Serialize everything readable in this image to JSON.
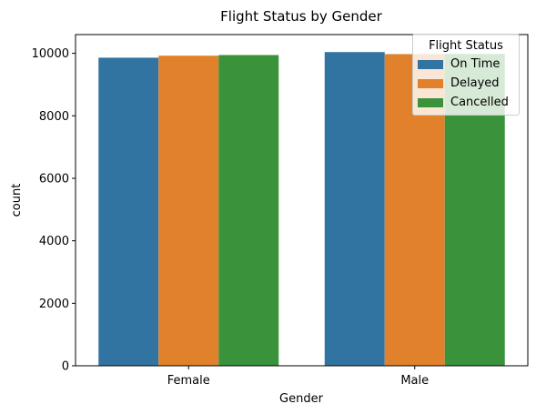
{
  "chart_data": {
    "type": "bar",
    "title": "Flight Status by Gender",
    "xlabel": "Gender",
    "ylabel": "count",
    "categories": [
      "Female",
      "Male"
    ],
    "series": [
      {
        "name": "On Time",
        "color": "#3274a1",
        "values": [
          9860,
          10040
        ]
      },
      {
        "name": "Delayed",
        "color": "#e1812c",
        "values": [
          9925,
          9975
        ]
      },
      {
        "name": "Cancelled",
        "color": "#3a923a",
        "values": [
          9945,
          9980
        ]
      }
    ],
    "ylim": [
      0,
      10600
    ],
    "yticks": [
      0,
      2000,
      4000,
      6000,
      8000,
      10000
    ],
    "grid": false,
    "legend": {
      "title": "Flight Status",
      "placement": "top-right"
    }
  }
}
